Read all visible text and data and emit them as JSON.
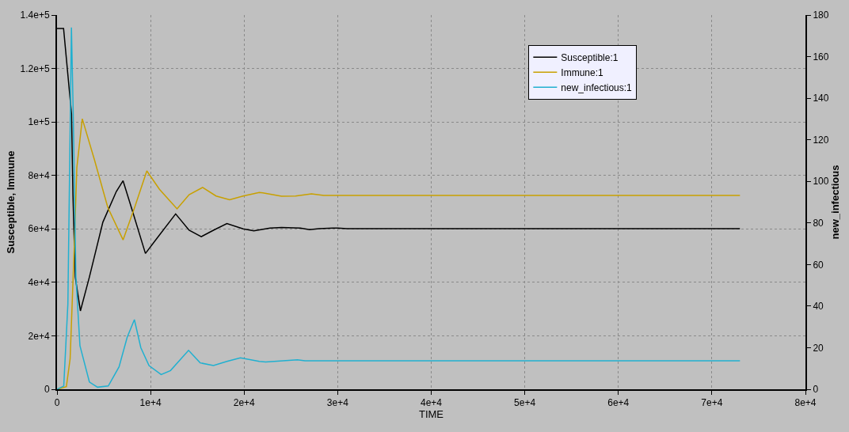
{
  "chart_data": {
    "type": "line",
    "xlabel": "TIME",
    "ylabel": "Susceptible, Immune",
    "y2label": "new_infectious",
    "xlim": [
      0,
      80000
    ],
    "xticks": [
      0,
      {
        "value": 10000,
        "label": "1e+4"
      },
      {
        "value": 20000,
        "label": "2e+4"
      },
      {
        "value": 30000,
        "label": "3e+4"
      },
      {
        "value": 40000,
        "label": "4e+4"
      },
      {
        "value": 50000,
        "label": "5e+4"
      },
      {
        "value": 60000,
        "label": "6e+4"
      },
      {
        "value": 70000,
        "label": "7e+4"
      },
      {
        "value": 80000,
        "label": "8e+4"
      }
    ],
    "ylim": [
      0,
      140000
    ],
    "yticks": [
      0,
      {
        "value": 20000,
        "label": "2e+4"
      },
      {
        "value": 40000,
        "label": "4e+4"
      },
      {
        "value": 60000,
        "label": "6e+4"
      },
      {
        "value": 80000,
        "label": "8e+4"
      },
      {
        "value": 100000,
        "label": "1e+5"
      },
      {
        "value": 120000,
        "label": "1.2e+5"
      },
      {
        "value": 140000,
        "label": "1.4e+5"
      }
    ],
    "y2lim": [
      0,
      180
    ],
    "y2ticks": [
      0,
      20,
      40,
      60,
      80,
      100,
      120,
      140,
      160,
      180
    ],
    "grid": true,
    "legend": "top right",
    "line_style": "solid",
    "marker": "none",
    "series": [
      {
        "name": "Susceptible:1",
        "color": "#000000",
        "x": [
          0,
          700,
          1550,
          1700,
          1950,
          2500,
          3460,
          4900,
          6340,
          7060,
          8070,
          9450,
          10660,
          12680,
          14120,
          15420,
          16720,
          18160,
          19890,
          21040,
          22770,
          24000,
          26000,
          27000,
          28000,
          29500,
          30000,
          31000,
          73000
        ],
        "values": [
          135000,
          135000,
          103000,
          73000,
          42000,
          29300,
          42000,
          62500,
          74000,
          78000,
          66600,
          50800,
          56400,
          65600,
          59500,
          57100,
          59500,
          62000,
          60000,
          59300,
          60300,
          60500,
          60300,
          59700,
          60100,
          60300,
          60300,
          60100,
          60100
        ]
      },
      {
        "name": "Immune:1",
        "color": "#c8a000",
        "x": [
          0,
          1000,
          1400,
          1830,
          2120,
          2700,
          3990,
          5430,
          7060,
          8360,
          9600,
          10950,
          12830,
          14120,
          15560,
          17000,
          18450,
          19890,
          21620,
          22000,
          24000,
          25500,
          27200,
          28500,
          73000
        ],
        "values": [
          0,
          1000,
          11400,
          52000,
          83000,
          101200,
          86000,
          68000,
          55900,
          68700,
          81700,
          74800,
          67500,
          72800,
          75500,
          72300,
          70900,
          72300,
          73600,
          73500,
          72200,
          72300,
          73100,
          72500,
          72500
        ]
      },
      {
        "name": "new_infectious:1",
        "color": "#20b0d0",
        "axis": "y2",
        "x": [
          0,
          720,
          1160,
          1350,
          1540,
          1730,
          2020,
          2450,
          3460,
          4330,
          5480,
          6630,
          7500,
          8270,
          8960,
          9830,
          11130,
          12130,
          14060,
          15300,
          16720,
          18160,
          19600,
          21620,
          22300,
          25700,
          26500,
          73000
        ],
        "values": [
          0,
          1.6,
          41,
          107,
          174,
          133,
          54,
          21,
          3.5,
          1,
          1.6,
          10.8,
          25,
          33.5,
          20,
          11.4,
          7.1,
          9,
          18.7,
          12.7,
          11.4,
          13.4,
          15.1,
          13.4,
          13.1,
          14.2,
          13.7,
          13.7
        ]
      }
    ]
  }
}
